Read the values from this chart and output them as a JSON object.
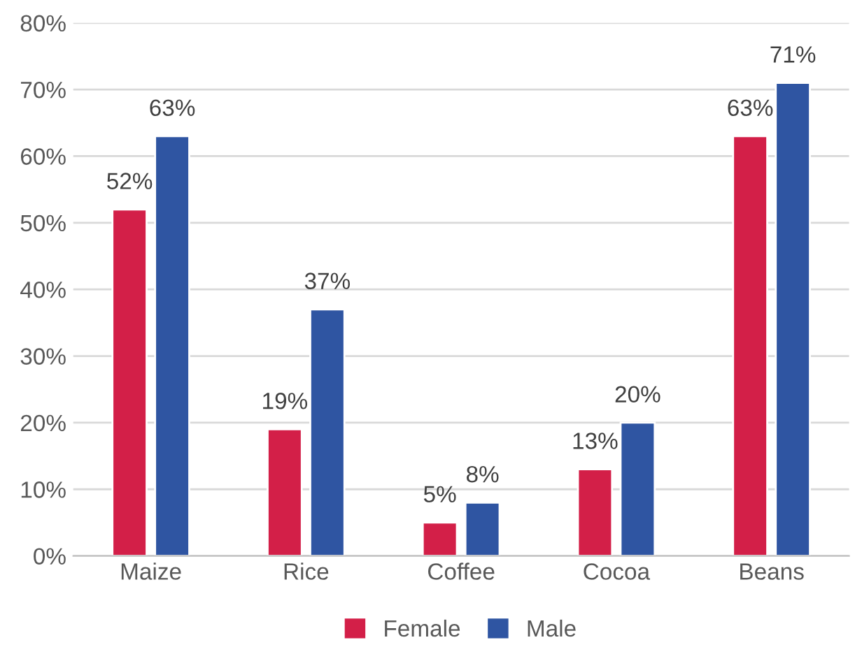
{
  "chart_data": {
    "type": "bar",
    "categories": [
      "Maize",
      "Rice",
      "Coffee",
      "Cocoa",
      "Beans"
    ],
    "series": [
      {
        "name": "Female",
        "color": "#d31f48",
        "values": [
          52,
          19,
          5,
          13,
          63
        ],
        "value_labels": [
          "52%",
          "19%",
          "5%",
          "13%",
          "63%"
        ]
      },
      {
        "name": "Male",
        "color": "#2f55a2",
        "values": [
          63,
          37,
          8,
          20,
          71
        ],
        "value_labels": [
          "63%",
          "37%",
          "8%",
          "20%",
          "71%"
        ]
      }
    ],
    "ylim": [
      0,
      80
    ],
    "yticks": [
      {
        "value": 0,
        "label": "0%"
      },
      {
        "value": 10,
        "label": "10%"
      },
      {
        "value": 20,
        "label": "20%"
      },
      {
        "value": 30,
        "label": "30%"
      },
      {
        "value": 40,
        "label": "40%"
      },
      {
        "value": 50,
        "label": "50%"
      },
      {
        "value": 60,
        "label": "60%"
      },
      {
        "value": 70,
        "label": "70%"
      },
      {
        "value": 80,
        "label": "80%"
      }
    ],
    "grid": "y",
    "legend": "bottom"
  }
}
